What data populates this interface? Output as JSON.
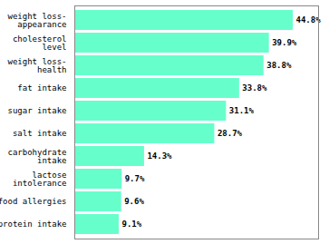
{
  "chart_data": {
    "type": "bar",
    "orientation": "horizontal",
    "categories": [
      "protein intake",
      "food allergies",
      "lactose\nintolerance",
      "carbohydrate\nintake",
      "salt intake",
      "sugar intake",
      "fat intake",
      "weight loss-\nhealth",
      "cholesterol\nlevel",
      "weight loss-\nappearance"
    ],
    "values": [
      9.1,
      9.6,
      9.7,
      14.3,
      28.7,
      31.1,
      33.8,
      38.8,
      39.9,
      44.8
    ],
    "value_labels": [
      "9.1%",
      "9.6%",
      "9.7%",
      "14.3%",
      "28.7%",
      "31.1%",
      "33.8%",
      "38.8%",
      "39.9%",
      "44.8%"
    ],
    "data_labels": true,
    "color": "#66ffcc",
    "xlim": [
      0,
      50
    ],
    "tick_labels": "y",
    "grid": false
  }
}
